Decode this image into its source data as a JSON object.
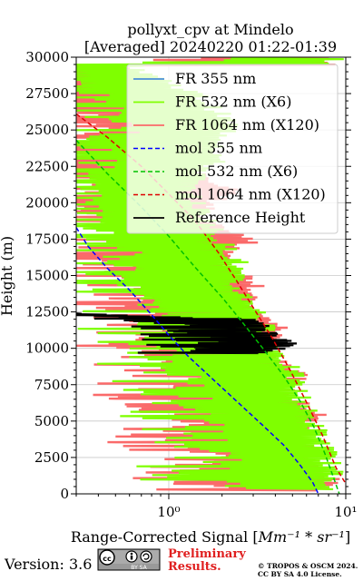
{
  "figure": {
    "title_line1": "pollyxt_cpv at Mindelo",
    "title_line2": "[Averaged] 20240220 01:22-01:39",
    "version_text": "Version: 3.6",
    "preliminary_line1": "Preliminary",
    "preliminary_line2": "Results.",
    "copyright_line1": "© TROPOS & OSCM 2024.",
    "copyright_line2": "CC BY SA 4.0 License.",
    "cc_badge_text": "cc ⓘ ⓢ",
    "cc_badge_sub": "BY   SA",
    "colors": {
      "fr355": "#4a90d9",
      "fr532": "#7fff00",
      "fr1064": "#fa6a6a",
      "mol355": "#0000ff",
      "mol532": "#00c000",
      "mol1064": "#dd0000",
      "ref": "#000000",
      "preliminary": "#e02020",
      "grid": "#c8c8c8"
    }
  },
  "chart_data": {
    "type": "line",
    "title": "pollyxt_cpv at Mindelo\n[Averaged] 20240220 01:22-01:39",
    "xlabel": "Range-Corrected Signal [Mm^-1 * sr^-1]",
    "xlabel_main": "Range-Corrected Signal [",
    "xlabel_math": "Mm⁻¹ * sr⁻¹",
    "xlabel_close": "]",
    "ylabel": "Height (m)",
    "xscale": "log",
    "xlim": [
      0.3,
      10
    ],
    "ylim": [
      0,
      30000
    ],
    "xticks": [
      {
        "value": 1,
        "label": "10⁰"
      },
      {
        "value": 10,
        "label": "10¹"
      }
    ],
    "yticks": [
      0,
      2500,
      5000,
      7500,
      10000,
      12500,
      15000,
      17500,
      20000,
      22500,
      25000,
      27500,
      30000
    ],
    "ytick_labels": [
      "0",
      "2500",
      "5000",
      "7500",
      "10000",
      "12500",
      "15000",
      "17500",
      "20000",
      "22500",
      "25000",
      "27500",
      "30000"
    ],
    "grid": true,
    "legend_position": "top-right",
    "legend": [
      {
        "label": "FR 355 nm",
        "color": "#4a90d9",
        "style": "solid"
      },
      {
        "label": "FR 532 nm (X6)",
        "color": "#7fff00",
        "style": "solid"
      },
      {
        "label": "FR 1064 nm (X120)",
        "color": "#fa6a6a",
        "style": "solid"
      },
      {
        "label": "mol 355 nm",
        "color": "#0000ff",
        "style": "dashed"
      },
      {
        "label": "mol 532 nm (X6)",
        "color": "#00c000",
        "style": "dashed"
      },
      {
        "label": "mol 1064 nm (X120)",
        "color": "#dd0000",
        "style": "dashed"
      },
      {
        "label": "Reference Height",
        "color": "#000000",
        "style": "solid"
      }
    ],
    "series": [
      {
        "name": "mol 355 nm",
        "style": "dashed",
        "x": [
          0.3,
          0.35,
          0.45,
          0.6,
          0.8,
          1.0,
          1.3,
          1.8,
          2.5,
          3.4,
          4.5,
          5.5,
          6.5,
          7.0
        ],
        "y": [
          18300,
          17000,
          15500,
          14000,
          12300,
          10900,
          9400,
          7800,
          6200,
          4700,
          3300,
          2000,
          800,
          0
        ]
      },
      {
        "name": "mol 532 nm (X6)",
        "style": "dashed",
        "x": [
          0.3,
          0.45,
          0.7,
          1.0,
          1.4,
          2.0,
          2.6,
          3.4,
          4.4,
          5.5,
          6.6,
          7.6,
          8.6,
          9.2
        ],
        "y": [
          24300,
          22000,
          19700,
          17700,
          15600,
          13500,
          11800,
          10000,
          8200,
          6400,
          4600,
          2800,
          1000,
          0
        ]
      },
      {
        "name": "mol 1064 nm (X120)",
        "style": "dashed",
        "x": [
          0.3,
          0.45,
          0.7,
          1.0,
          1.4,
          1.9,
          2.4,
          3.0,
          3.8,
          4.8,
          6.0,
          7.4,
          8.8,
          10.0
        ],
        "y": [
          26100,
          24500,
          22500,
          20600,
          18800,
          16600,
          14700,
          12800,
          10800,
          8600,
          6300,
          4000,
          1800,
          700
        ]
      },
      {
        "name": "FR 1064 nm (X120)",
        "style": "profile",
        "x": [
          0.5,
          1.0,
          1.6,
          1.1,
          2.2,
          1.3,
          2.8,
          1.8,
          3.2,
          2.4,
          4.2,
          3.0,
          5.5,
          4.2,
          6.8,
          4.6,
          7.2,
          5.8,
          7.8,
          7.5
        ],
        "y": [
          29500,
          27000,
          25000,
          23000,
          21000,
          19000,
          17500,
          16000,
          14500,
          13000,
          11500,
          10000,
          8500,
          7000,
          5500,
          4000,
          3000,
          2200,
          1200,
          500
        ]
      },
      {
        "name": "FR 532 nm (X6)",
        "style": "profile",
        "x": [
          0.6,
          1.4,
          2.2,
          1.8,
          1.2,
          1.6,
          1.9,
          2.4,
          2.2,
          3.0,
          3.4,
          4.0,
          4.8,
          5.3,
          6.0,
          7.0,
          8.0,
          8.4
        ],
        "y": [
          29500,
          27500,
          25500,
          23000,
          21000,
          19000,
          17500,
          16000,
          14500,
          13000,
          11500,
          10000,
          8500,
          7000,
          5500,
          4000,
          2200,
          700
        ]
      },
      {
        "name": "Reference Height",
        "style": "solid",
        "x": [
          0.3,
          3.0,
          4.0,
          5.0,
          4.5,
          3.5
        ],
        "y": [
          12400,
          12000,
          11000,
          10400,
          10000,
          9800
        ]
      }
    ]
  }
}
